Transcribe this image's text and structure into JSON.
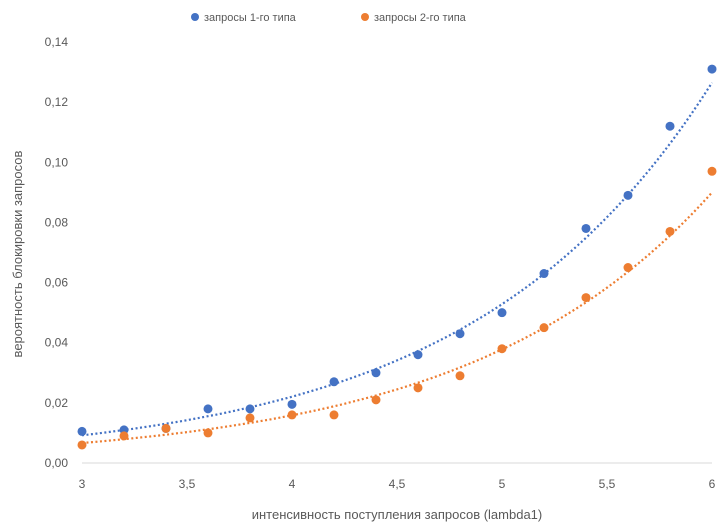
{
  "chart_data": {
    "type": "scatter",
    "xlabel": "интенсивность поступления запросов (lambda1)",
    "ylabel": "вероятность блокировки запросов",
    "xlim": [
      3,
      6
    ],
    "ylim": [
      0,
      0.14
    ],
    "x_ticks": [
      3,
      3.5,
      4,
      4.5,
      5,
      5.5,
      6
    ],
    "x_tick_labels": [
      "3",
      "3,5",
      "4",
      "4,5",
      "5",
      "5,5",
      "6"
    ],
    "y_ticks": [
      0,
      0.02,
      0.04,
      0.06,
      0.08,
      0.1,
      0.12,
      0.14
    ],
    "y_tick_labels": [
      "0,00",
      "0,02",
      "0,04",
      "0,06",
      "0,08",
      "0,10",
      "0,12",
      "0,14"
    ],
    "grid": false,
    "legend_position": "top",
    "trendline": "exponential, dotted",
    "x": [
      3,
      3.2,
      3.4,
      3.6,
      3.8,
      4,
      4.2,
      4.4,
      4.6,
      4.8,
      5,
      5.2,
      5.4,
      5.6,
      5.8,
      6
    ],
    "series": [
      {
        "name": "запросы 1-го типа",
        "color": "#4472C4",
        "values": [
          0.0105,
          0.011,
          0.0115,
          0.018,
          0.018,
          0.0195,
          0.027,
          0.03,
          0.036,
          0.043,
          0.05,
          0.063,
          0.078,
          0.089,
          0.112,
          0.131
        ]
      },
      {
        "name": "запросы 2-го типа",
        "color": "#ED7D31",
        "values": [
          0.006,
          0.009,
          0.0115,
          0.01,
          0.015,
          0.016,
          0.016,
          0.021,
          0.025,
          0.029,
          0.038,
          0.045,
          0.055,
          0.065,
          0.077,
          0.097
        ]
      }
    ]
  }
}
